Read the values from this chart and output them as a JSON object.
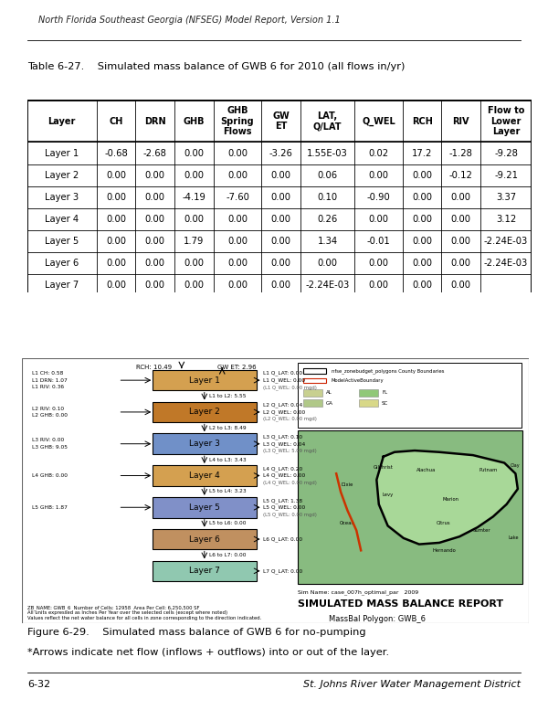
{
  "header_text": "North Florida Southeast Georgia (NFSEG) Model Report, Version 1.1",
  "table_title": "Table 6-27.    Simulated mass balance of GWB 6 for 2010 (all flows in/yr)",
  "col_headers": [
    "Layer",
    "CH",
    "DRN",
    "GHB",
    "GHB\nSpring\nFlows",
    "GW\nET",
    "LAT,\nQ/LAT",
    "Q_WEL",
    "RCH",
    "RIV",
    "Flow to\nLower\nLayer"
  ],
  "rows": [
    [
      "Layer 1",
      "-0.68",
      "-2.68",
      "0.00",
      "0.00",
      "-3.26",
      "1.55E-03",
      "0.02",
      "17.2",
      "-1.28",
      "-9.28"
    ],
    [
      "Layer 2",
      "0.00",
      "0.00",
      "0.00",
      "0.00",
      "0.00",
      "0.06",
      "0.00",
      "0.00",
      "-0.12",
      "-9.21"
    ],
    [
      "Layer 3",
      "0.00",
      "0.00",
      "-4.19",
      "-7.60",
      "0.00",
      "0.10",
      "-0.90",
      "0.00",
      "0.00",
      "3.37"
    ],
    [
      "Layer 4",
      "0.00",
      "0.00",
      "0.00",
      "0.00",
      "0.00",
      "0.26",
      "0.00",
      "0.00",
      "0.00",
      "3.12"
    ],
    [
      "Layer 5",
      "0.00",
      "0.00",
      "1.79",
      "0.00",
      "0.00",
      "1.34",
      "-0.01",
      "0.00",
      "0.00",
      "-2.24E-03"
    ],
    [
      "Layer 6",
      "0.00",
      "0.00",
      "0.00",
      "0.00",
      "0.00",
      "0.00",
      "0.00",
      "0.00",
      "0.00",
      "-2.24E-03"
    ],
    [
      "Layer 7",
      "0.00",
      "0.00",
      "0.00",
      "0.00",
      "0.00",
      "-2.24E-03",
      "0.00",
      "0.00",
      "0.00",
      ""
    ]
  ],
  "figure_caption_line1": "Figure 6-29.    Simulated mass balance of GWB 6 for no-pumping",
  "figure_caption_line2": "*Arrows indicate net flow (inflows + outflows) into or out of the layer.",
  "footer_left": "6-32",
  "footer_right": "St. Johns River Water Management District",
  "diagram_note1": "ZB_NAME: GWB_6  Number of Cells: 12958  Area Per Cell: 6,250,500 SF",
  "diagram_note2": "All units expressed as Inches Per Year over the selected cells (except where noted)",
  "diagram_note3": "Values reflect the net water balance for all cells in zone corresponding to the direction indicated.",
  "sim_name": "Sim Name: case_007h_optimal_par   2009",
  "report_title1": "SIMULATED MASS BALANCE REPORT",
  "report_title2": "MassBal Polygon: GWB_6",
  "rch_val": "RCH: 10.49",
  "gwet_val": "GW ET: 2.96",
  "layer_colors": [
    "#D4A050",
    "#C07828",
    "#7090C8",
    "#D4A050",
    "#8090C8",
    "#C09060",
    "#90C8B0"
  ],
  "layer_names": [
    "Layer 1",
    "Layer 2",
    "Layer 3",
    "Layer 4",
    "Layer 5",
    "Layer 6",
    "Layer 7"
  ],
  "left_annotations": [
    [
      "L1 CH: 0.58",
      "L1 DRN: 1.07",
      "L1 RIV: 0.36"
    ],
    [
      "L2 RIV: 0.10",
      "L2 GHB: 0.00"
    ],
    [
      "L3 RIV: 0.00",
      "L3 GHB: 9.05"
    ],
    [
      "L4 GHB: 0.00"
    ],
    [
      "L5 GHB: 1.87"
    ],
    [],
    []
  ],
  "right_annotations": [
    [
      "L1 Q_LAT: 0.00",
      "L1 Q_WEL: 0.00",
      "(L1 Q_WEL: 0.00 mgd)"
    ],
    [
      "L2 Q_LAT: 0.04",
      "L2 Q_WEL: 0.00",
      "(L2 Q_WEL: 0.00 mgd)"
    ],
    [
      "L3 Q_LAT: 0.10",
      "L3 Q_WEL: 0.04",
      "(L3 Q_WEL: 5.09 mgd)"
    ],
    [
      "L4 Q_LAT: 0.20",
      "L4 Q_WEL: 0.00",
      "(L4 Q_WEL: 0.00 mgd)"
    ],
    [
      "L5 Q_LAT: 1.38",
      "L5 Q_WEL: 0.00",
      "(L5 Q_WEL: 0.00 mgd)"
    ],
    [
      "L6 Q_LAT: 0.00"
    ],
    [
      "L7 Q_LAT: 0.00"
    ]
  ],
  "between_layers": [
    "L1 to L2: 5.55",
    "L2 to L3: 8.49",
    "L4 to L3: 3.43",
    "L5 to L4: 3.23",
    "L5 to L6: 0.00",
    "L6 to L7: 0.00",
    ""
  ]
}
